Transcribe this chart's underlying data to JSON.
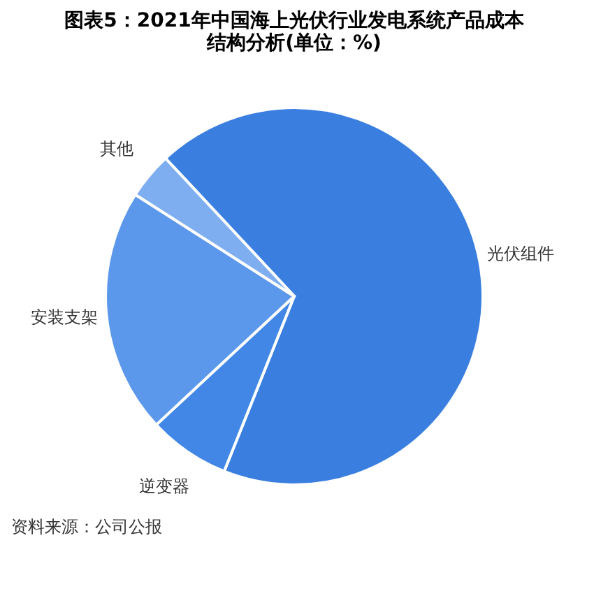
{
  "chart_data": {
    "type": "pie",
    "title": "图表5：2021年中国海上光伏行业发电系统产品成本结构分析(单位：%)",
    "categories": [
      "光伏组件",
      "逆变器",
      "安装支架",
      "其他"
    ],
    "values": [
      68,
      7,
      21,
      4
    ],
    "colors": [
      "#3a7fe0",
      "#4287e6",
      "#5b97ea",
      "#7eaef0"
    ],
    "legend": false,
    "annotations": [
      "资料来源：公司公报"
    ]
  }
}
